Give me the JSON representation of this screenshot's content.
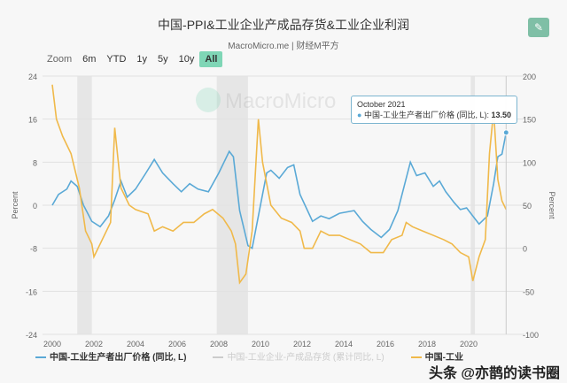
{
  "header": {
    "title": "中国-PPI&工业企业产成品存货&工业企业利润",
    "subtitle": "MacroMicro.me | 财经M平方",
    "edit_icon": "pencil-icon"
  },
  "zoom": {
    "label": "Zoom",
    "options": [
      "6m",
      "YTD",
      "1y",
      "5y",
      "10y",
      "All"
    ],
    "selected": "All"
  },
  "watermark": {
    "logo_text": "MacroMicro",
    "overlay_text": "头条 @亦鹊的读书圈"
  },
  "tooltip": {
    "date": "October 2021",
    "series": "中国-工业生产者出厂价格 (同比, L)",
    "value": "13.50"
  },
  "colors": {
    "ppi": "#5aa9d6",
    "inventory": "#cccccc",
    "profit": "#f0b94a",
    "recession": "#e6e6e6"
  },
  "chart_data": {
    "type": "line",
    "xlabel": "",
    "ylabel_left": "Percent",
    "ylabel_right": "Percent",
    "x_ticks": [
      "2000",
      "2002",
      "2004",
      "2006",
      "2008",
      "2010",
      "2012",
      "2014",
      "2016",
      "2018",
      "2020"
    ],
    "xlim": [
      2000,
      2021.9
    ],
    "y_left": {
      "lim": [
        -24,
        24
      ],
      "ticks": [
        "24",
        "16",
        "8",
        "0",
        "-8",
        "-16",
        "-24"
      ]
    },
    "y_right": {
      "lim": [
        -100,
        200
      ],
      "ticks": [
        "200",
        "150",
        "100",
        "50",
        "0",
        "-50",
        "-100"
      ]
    },
    "recessions": [
      [
        2001.2,
        2001.9
      ],
      [
        2007.9,
        2009.4
      ],
      [
        2020.1,
        2020.3
      ]
    ],
    "series": [
      {
        "name": "中国-工业生产者出厂价格 (同比, L)",
        "axis": "left",
        "color": "#5aa9d6",
        "points": [
          [
            2000.0,
            0
          ],
          [
            2000.3,
            2
          ],
          [
            2000.7,
            3
          ],
          [
            2000.9,
            4.5
          ],
          [
            2001.2,
            3.5
          ],
          [
            2001.5,
            0
          ],
          [
            2001.9,
            -3
          ],
          [
            2002.3,
            -4
          ],
          [
            2002.7,
            -2
          ],
          [
            2003.0,
            1
          ],
          [
            2003.3,
            4.5
          ],
          [
            2003.6,
            1.5
          ],
          [
            2004.0,
            3
          ],
          [
            2004.5,
            6
          ],
          [
            2004.9,
            8.5
          ],
          [
            2005.3,
            6
          ],
          [
            2005.8,
            4
          ],
          [
            2006.2,
            2.5
          ],
          [
            2006.6,
            4
          ],
          [
            2007.0,
            3
          ],
          [
            2007.5,
            2.5
          ],
          [
            2008.0,
            6
          ],
          [
            2008.5,
            10
          ],
          [
            2008.7,
            9
          ],
          [
            2009.0,
            -1
          ],
          [
            2009.4,
            -7.5
          ],
          [
            2009.6,
            -8
          ],
          [
            2009.9,
            -2
          ],
          [
            2010.3,
            6
          ],
          [
            2010.5,
            6.5
          ],
          [
            2010.9,
            5
          ],
          [
            2011.3,
            7
          ],
          [
            2011.6,
            7.5
          ],
          [
            2011.9,
            2
          ],
          [
            2012.5,
            -3
          ],
          [
            2012.9,
            -2
          ],
          [
            2013.3,
            -2.5
          ],
          [
            2013.8,
            -1.5
          ],
          [
            2014.5,
            -1
          ],
          [
            2014.9,
            -3
          ],
          [
            2015.3,
            -4.5
          ],
          [
            2015.8,
            -6
          ],
          [
            2016.2,
            -4.5
          ],
          [
            2016.6,
            -1
          ],
          [
            2017.0,
            5
          ],
          [
            2017.2,
            8
          ],
          [
            2017.5,
            5.5
          ],
          [
            2017.9,
            6
          ],
          [
            2018.3,
            3.5
          ],
          [
            2018.6,
            4.5
          ],
          [
            2018.9,
            2.5
          ],
          [
            2019.3,
            0.5
          ],
          [
            2019.6,
            -0.8
          ],
          [
            2019.9,
            -0.5
          ],
          [
            2020.3,
            -2.5
          ],
          [
            2020.5,
            -3.5
          ],
          [
            2020.9,
            -2
          ],
          [
            2021.2,
            4
          ],
          [
            2021.4,
            9
          ],
          [
            2021.6,
            9.5
          ],
          [
            2021.8,
            13.5
          ]
        ]
      },
      {
        "name": "中国-工业企业-产成品存货 (累计同比, L)",
        "axis": "left",
        "color": "#cccccc",
        "hidden": true,
        "points": []
      },
      {
        "name": "中国-工业",
        "axis": "right",
        "color": "#f0b94a",
        "points": [
          [
            2000.0,
            190
          ],
          [
            2000.2,
            150
          ],
          [
            2000.5,
            130
          ],
          [
            2000.9,
            110
          ],
          [
            2001.3,
            70
          ],
          [
            2001.6,
            20
          ],
          [
            2001.9,
            5
          ],
          [
            2002.0,
            -10
          ],
          [
            2002.4,
            10
          ],
          [
            2002.8,
            30
          ],
          [
            2003.0,
            140
          ],
          [
            2003.3,
            70
          ],
          [
            2003.7,
            50
          ],
          [
            2004.0,
            45
          ],
          [
            2004.6,
            40
          ],
          [
            2004.9,
            20
          ],
          [
            2005.3,
            25
          ],
          [
            2005.8,
            20
          ],
          [
            2006.3,
            30
          ],
          [
            2006.8,
            30
          ],
          [
            2007.3,
            40
          ],
          [
            2007.7,
            45
          ],
          [
            2008.2,
            35
          ],
          [
            2008.6,
            20
          ],
          [
            2008.8,
            5
          ],
          [
            2009.0,
            -40
          ],
          [
            2009.3,
            -30
          ],
          [
            2009.6,
            20
          ],
          [
            2009.9,
            150
          ],
          [
            2010.1,
            100
          ],
          [
            2010.5,
            50
          ],
          [
            2011.0,
            35
          ],
          [
            2011.5,
            30
          ],
          [
            2011.9,
            20
          ],
          [
            2012.1,
            0
          ],
          [
            2012.5,
            0
          ],
          [
            2012.9,
            20
          ],
          [
            2013.3,
            15
          ],
          [
            2013.8,
            15
          ],
          [
            2014.3,
            10
          ],
          [
            2014.8,
            5
          ],
          [
            2015.3,
            -5
          ],
          [
            2015.9,
            -5
          ],
          [
            2016.3,
            10
          ],
          [
            2016.8,
            15
          ],
          [
            2017.0,
            30
          ],
          [
            2017.3,
            25
          ],
          [
            2017.8,
            20
          ],
          [
            2018.3,
            15
          ],
          [
            2018.8,
            10
          ],
          [
            2019.2,
            5
          ],
          [
            2019.6,
            -5
          ],
          [
            2020.0,
            -10
          ],
          [
            2020.2,
            -38
          ],
          [
            2020.5,
            -10
          ],
          [
            2020.8,
            10
          ],
          [
            2021.0,
            110
          ],
          [
            2021.2,
            160
          ],
          [
            2021.4,
            80
          ],
          [
            2021.6,
            55
          ],
          [
            2021.8,
            45
          ]
        ]
      }
    ]
  }
}
